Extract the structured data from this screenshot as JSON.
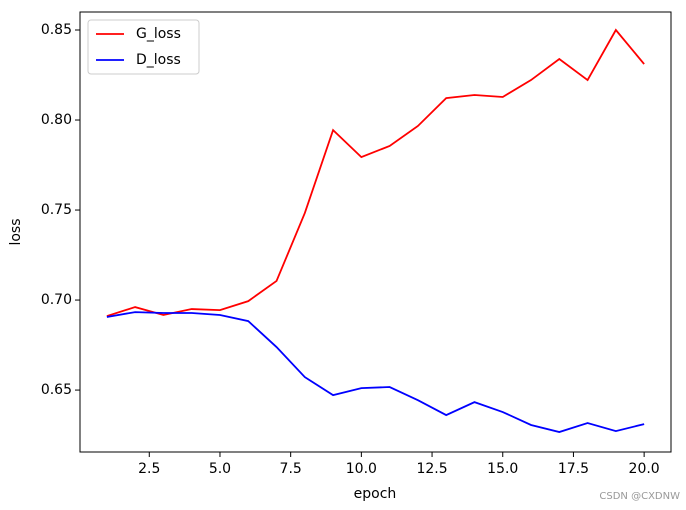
{
  "chart_data": {
    "type": "line",
    "x": [
      1,
      2,
      3,
      4,
      5,
      6,
      7,
      8,
      9,
      10,
      11,
      12,
      13,
      14,
      15,
      16,
      17,
      18,
      19,
      20
    ],
    "series": [
      {
        "name": "G_loss",
        "color": "#ff0000",
        "values": [
          0.6911,
          0.6961,
          0.6917,
          0.695,
          0.6944,
          0.6994,
          0.7106,
          0.7483,
          0.7944,
          0.7794,
          0.7856,
          0.7967,
          0.8122,
          0.8139,
          0.8128,
          0.8222,
          0.8339,
          0.8222,
          0.85,
          0.8311
        ]
      },
      {
        "name": "D_loss",
        "color": "#0000ff",
        "values": [
          0.6906,
          0.6933,
          0.6928,
          0.6928,
          0.6917,
          0.6883,
          0.6739,
          0.6572,
          0.6472,
          0.6511,
          0.6517,
          0.6444,
          0.6361,
          0.6433,
          0.6378,
          0.6306,
          0.6267,
          0.6317,
          0.6272,
          0.6311
        ]
      }
    ],
    "x_label": "epoch",
    "y_label": "loss",
    "xlim": [
      0.05,
      20.95
    ],
    "ylim": [
      0.6156,
      0.86
    ],
    "xticks": [
      2.5,
      {
        "value": 5,
        "label": "5.0"
      },
      7.5,
      {
        "value": 10,
        "label": "10.0"
      },
      12.5,
      {
        "value": 15,
        "label": "15.0"
      },
      17.5,
      {
        "value": 20,
        "label": "20.0"
      }
    ],
    "yticks": [
      0.65,
      {
        "value": 0.7,
        "label": "0.70"
      },
      0.75,
      {
        "value": 0.8,
        "label": "0.80"
      },
      0.85
    ],
    "legend": "upper left",
    "grid": false,
    "watermark": "CSDN @CXDNW"
  }
}
